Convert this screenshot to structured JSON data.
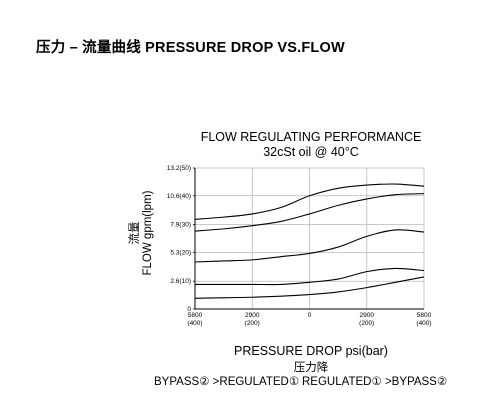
{
  "heading": "压力 – 流量曲线 PRESSURE DROP VS.FLOW",
  "chart_data": {
    "type": "line",
    "title": "FLOW REGULATING PERFORMANCE",
    "subtitle": "32cSt oil @ 40°C",
    "ylabel_cn": "流量",
    "ylabel": "FLOW gpm(lpm)",
    "xlabel": "PRESSURE DROP psi(bar)",
    "xlabel_cn": "压力降",
    "xlim": [
      -5800,
      5800
    ],
    "ylim": [
      0,
      13.2
    ],
    "x_ticks": [
      {
        "value": -5800,
        "label": "5800",
        "sub": "(400)"
      },
      {
        "value": -2900,
        "label": "2900",
        "sub": "(200)"
      },
      {
        "value": 0,
        "label": "0",
        "sub": ""
      },
      {
        "value": 2900,
        "label": "2900",
        "sub": "(200)"
      },
      {
        "value": 5800,
        "label": "5800",
        "sub": "(400)"
      }
    ],
    "y_ticks": [
      {
        "value": 0,
        "label": "0"
      },
      {
        "value": 2.6,
        "label": "2.6(10)"
      },
      {
        "value": 5.3,
        "label": "5.3(20)"
      },
      {
        "value": 7.9,
        "label": "7.9(30)"
      },
      {
        "value": 10.6,
        "label": "10.6(40)"
      },
      {
        "value": 13.2,
        "label": "13.2(50)"
      }
    ],
    "grid": true,
    "series": [
      {
        "x": [
          -5800,
          -4350,
          -2900,
          -1450,
          0,
          1450,
          2900,
          4350,
          5800
        ],
        "y": [
          8.4,
          8.6,
          8.9,
          9.5,
          10.6,
          11.3,
          11.6,
          11.7,
          11.5
        ]
      },
      {
        "x": [
          -5800,
          -4350,
          -2900,
          -1450,
          0,
          1450,
          2900,
          4350,
          5800
        ],
        "y": [
          7.3,
          7.5,
          7.8,
          8.2,
          8.9,
          9.7,
          10.3,
          10.7,
          10.8
        ]
      },
      {
        "x": [
          -5800,
          -4350,
          -2900,
          -1450,
          0,
          1450,
          2900,
          4350,
          5800
        ],
        "y": [
          4.4,
          4.5,
          4.6,
          4.9,
          5.2,
          5.8,
          6.8,
          7.4,
          7.2
        ]
      },
      {
        "x": [
          -5800,
          -4350,
          -2900,
          -1450,
          0,
          1450,
          2900,
          4350,
          5800
        ],
        "y": [
          2.3,
          2.3,
          2.3,
          2.3,
          2.5,
          2.8,
          3.5,
          3.8,
          3.6
        ]
      },
      {
        "x": [
          -5800,
          -4350,
          -2900,
          -1450,
          0,
          1450,
          2900,
          4350,
          5800
        ],
        "y": [
          1.0,
          1.05,
          1.1,
          1.2,
          1.35,
          1.6,
          2.0,
          2.5,
          3.0
        ]
      }
    ]
  },
  "legend": {
    "left": "BYPASS② >REGULATED①",
    "right": "REGULATED① >BYPASS②"
  }
}
